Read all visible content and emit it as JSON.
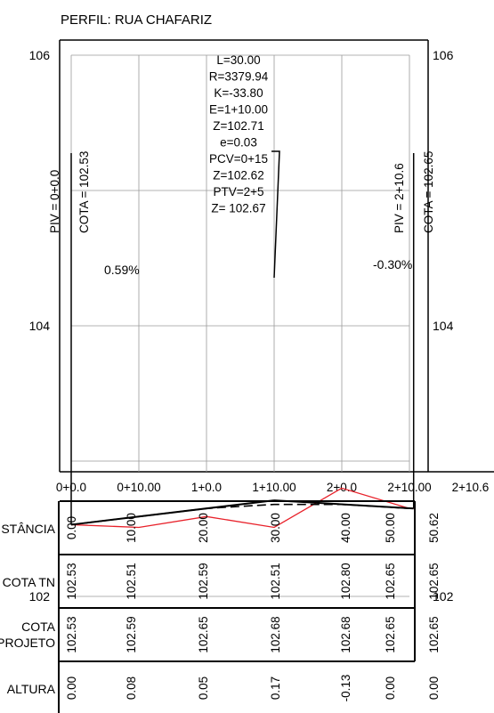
{
  "title": "PERFIL: RUA CHAFARIZ",
  "y_axis": {
    "ticks_left": [
      "106",
      "104",
      "102"
    ],
    "ticks_right": [
      "106",
      "104",
      "102"
    ]
  },
  "x_axis": {
    "ticks": [
      "0+0.0",
      "0+10.00",
      "1+0.0",
      "1+10.00",
      "2+0.0",
      "2+10.00",
      "2+10.6"
    ]
  },
  "curve_note": [
    "L=30.00",
    "R=3379.94",
    "K=-33.80",
    "E=1+10.00",
    "Z=102.71",
    "e=0.03",
    "PCV=0+15",
    "Z=102.62",
    "PTV=2+5",
    "Z= 102.67"
  ],
  "piv_left": "PIV = 0+0.0",
  "cota_left": "COTA = 102.53",
  "piv_right": "PIV = 2+10.6",
  "cota_right": "COTA = 102.65",
  "grade_left": "0.59%",
  "grade_right": "-0.30%",
  "colors": {
    "terrain": "#e8212a",
    "project": "#000000",
    "grid": "#9a9a9a"
  },
  "chart_data": {
    "type": "line",
    "x": [
      0,
      10,
      20,
      30,
      40,
      50,
      50.62
    ],
    "series": [
      {
        "values": [
          102.53,
          102.51,
          102.59,
          102.51,
          102.8,
          102.65,
          102.65
        ]
      },
      {
        "values": [
          102.53,
          102.59,
          102.65,
          102.68,
          102.68,
          102.65,
          102.65
        ]
      }
    ]
  },
  "table": {
    "rows": [
      {
        "label": "DISTÂNCIA",
        "values": [
          "0.00",
          "10.00",
          "20.00",
          "30.00",
          "40.00",
          "50.00",
          "50.62"
        ]
      },
      {
        "label": "COTA TN",
        "values": [
          "102.53",
          "102.51",
          "102.59",
          "102.51",
          "102.80",
          "102.65",
          "102.65"
        ]
      },
      {
        "label": "COTA PROJETO",
        "values": [
          "102.53",
          "102.59",
          "102.65",
          "102.68",
          "102.68",
          "102.65",
          "102.65"
        ]
      },
      {
        "label": "ALTURA",
        "values": [
          "0.00",
          "0.08",
          "0.05",
          "0.17",
          "-0.13",
          "0.00",
          "0.00"
        ]
      }
    ]
  }
}
